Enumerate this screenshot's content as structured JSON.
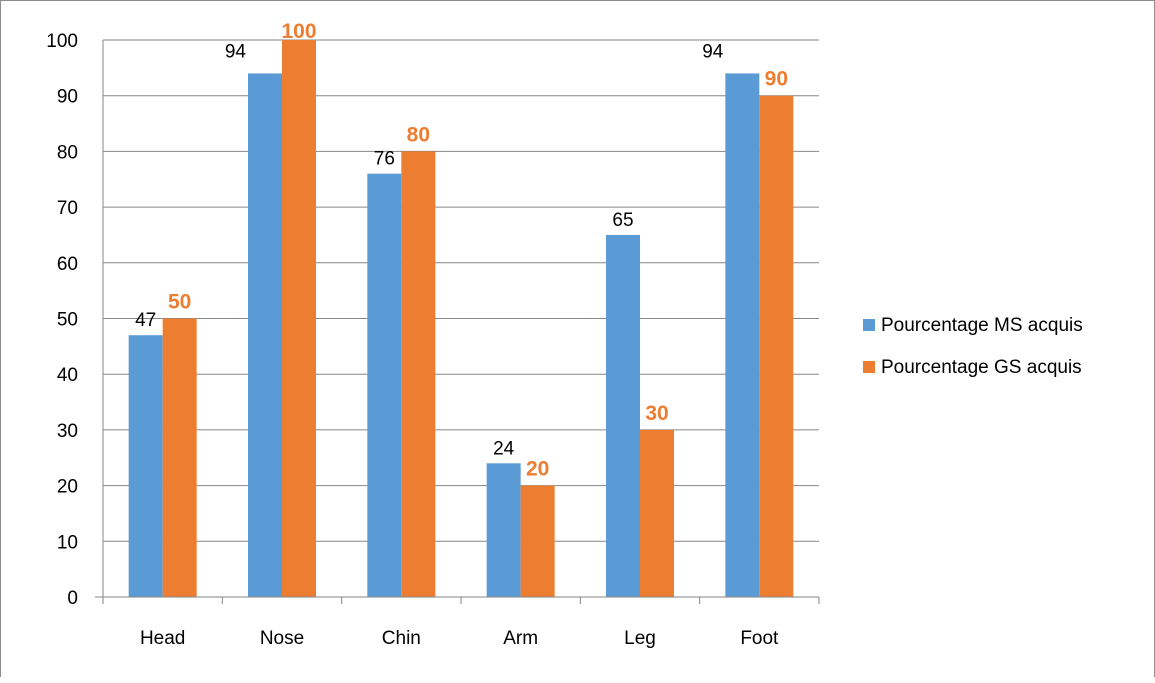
{
  "chart_data": {
    "type": "bar",
    "title": "",
    "xlabel": "",
    "ylabel": "",
    "categories": [
      "Head",
      "Nose",
      "Chin",
      "Arm",
      "Leg",
      "Foot"
    ],
    "ylim": [
      0,
      100
    ],
    "yticks": [
      "0",
      "10",
      "20",
      "30",
      "40",
      "50",
      "60",
      "70",
      "80",
      "90",
      "100"
    ],
    "grid": true,
    "legend_position": "right",
    "series": [
      {
        "name": "Pourcentage MS acquis",
        "values": [
          47,
          94,
          76,
          24,
          65,
          94
        ],
        "labels": [
          "47",
          "94",
          "76",
          "24",
          "65",
          "94"
        ],
        "color": "#5B9BD5",
        "label_color": "#000000",
        "label_bold": false
      },
      {
        "name": "Pourcentage GS acquis",
        "values": [
          50,
          100,
          80,
          20,
          30,
          90
        ],
        "labels": [
          "50",
          "100",
          "80",
          "20",
          "30",
          "90"
        ],
        "color": "#ED7D31",
        "label_color": "#ED7D31",
        "label_bold": true
      }
    ]
  }
}
